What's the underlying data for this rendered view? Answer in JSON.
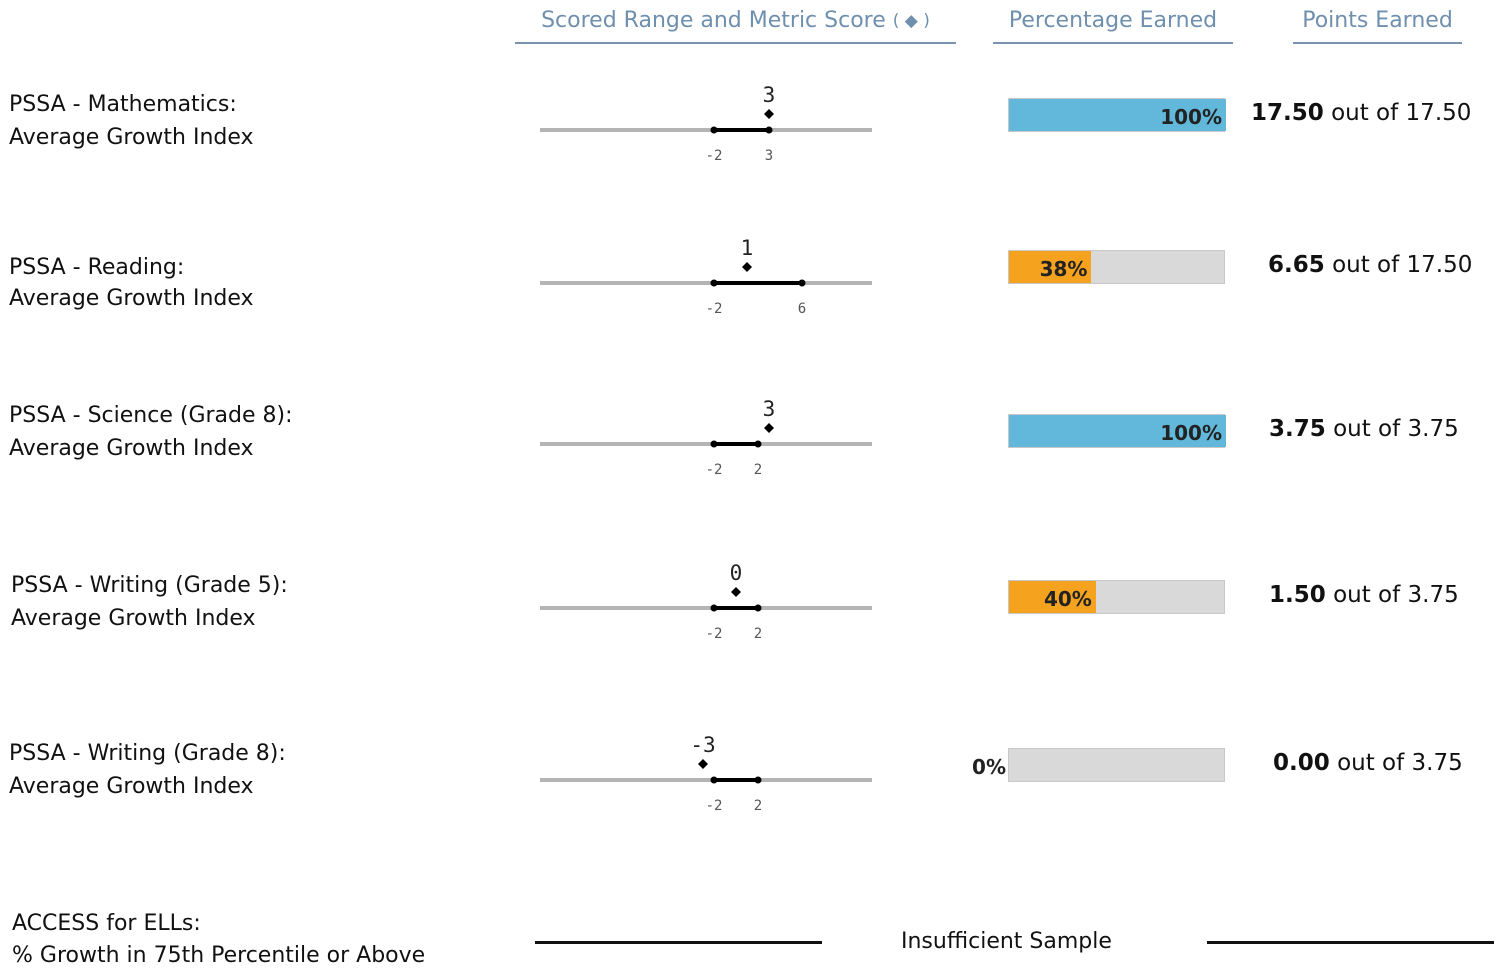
{
  "headers": {
    "scored_range": "Scored Range and Metric Score",
    "diamond_symbol": "( ◆ )",
    "percentage": "Percentage Earned",
    "points": "Points Earned"
  },
  "colors": {
    "header_text": "#6f8fae",
    "full_bar": "#62b8da",
    "partial_bar": "#f5a31f",
    "empty_bar": "#d9d9d9"
  },
  "metrics": [
    {
      "line1": "PSSA - Mathematics:",
      "line2": "Average Growth Index",
      "score": 3,
      "score_label": "3",
      "range_low": -2,
      "range_high": 3,
      "range_low_label": "-2",
      "range_high_label": "3",
      "percent": 100,
      "percent_label": "100%",
      "earned": "17.50",
      "out_of_text": "out of",
      "possible": "17.50"
    },
    {
      "line1": "PSSA - Reading:",
      "line2": "Average Growth Index",
      "score": 1,
      "score_label": "1",
      "range_low": -2,
      "range_high": 6,
      "range_low_label": "-2",
      "range_high_label": "6",
      "percent": 38,
      "percent_label": "38%",
      "earned": "6.65",
      "out_of_text": "out of",
      "possible": "17.50"
    },
    {
      "line1": "PSSA - Science (Grade 8):",
      "line2": "Average Growth Index",
      "score": 3,
      "score_label": "3",
      "range_low": -2,
      "range_high": 2,
      "range_low_label": "-2",
      "range_high_label": "2",
      "percent": 100,
      "percent_label": "100%",
      "earned": "3.75",
      "out_of_text": "out of",
      "possible": "3.75"
    },
    {
      "line1": "PSSA - Writing (Grade 5):",
      "line2": "Average Growth Index",
      "score": 0,
      "score_label": "0",
      "range_low": -2,
      "range_high": 2,
      "range_low_label": "-2",
      "range_high_label": "2",
      "percent": 40,
      "percent_label": "40%",
      "earned": "1.50",
      "out_of_text": "out of",
      "possible": "3.75"
    },
    {
      "line1": "PSSA - Writing (Grade 8):",
      "line2": "Average Growth Index",
      "score": -3,
      "score_label": "-3",
      "range_low": -2,
      "range_high": 2,
      "range_low_label": "-2",
      "range_high_label": "2",
      "percent": 0,
      "percent_label": "0%",
      "earned": "0.00",
      "out_of_text": "out of",
      "possible": "3.75"
    }
  ],
  "access": {
    "line1": "ACCESS for ELLs:",
    "line2": "% Growth in 75th Percentile or Above",
    "status": "Insufficient Sample"
  }
}
